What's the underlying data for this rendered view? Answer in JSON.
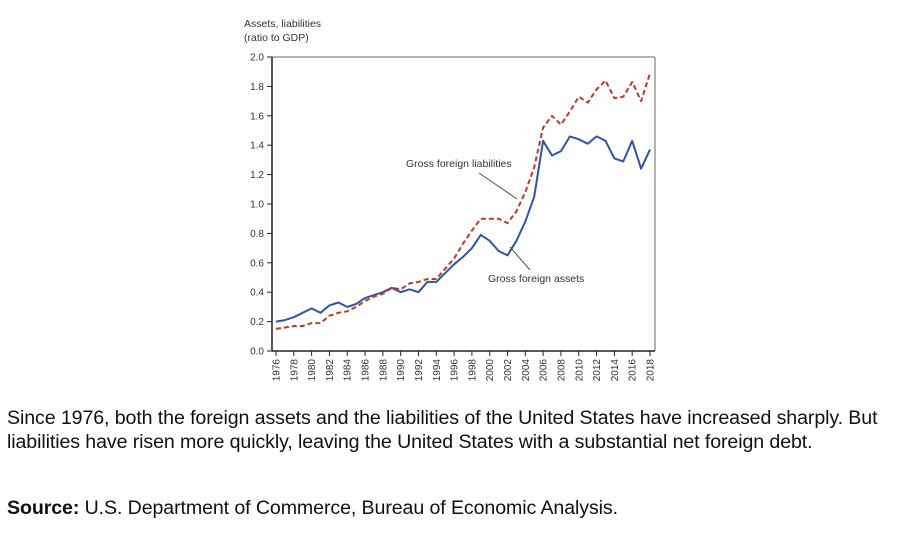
{
  "chart_data": {
    "type": "line",
    "title": "",
    "ylabel_lines": [
      "Assets, liabilities",
      "(ratio to GDP)"
    ],
    "xlabel": "",
    "ylim": [
      0.0,
      2.0
    ],
    "xlim": [
      1976,
      2018
    ],
    "yticks": [
      "0.0",
      "0.2",
      "0.4",
      "0.6",
      "0.8",
      "1.0",
      "1.2",
      "1.4",
      "1.6",
      "1.8",
      "2.0"
    ],
    "xticks": [
      "1976",
      "1978",
      "1980",
      "1982",
      "1984",
      "1986",
      "1988",
      "1990",
      "1992",
      "1994",
      "1996",
      "1998",
      "2000",
      "2002",
      "2004",
      "2006",
      "2008",
      "2010",
      "2012",
      "2014",
      "2016",
      "2018"
    ],
    "grid": false,
    "x": [
      1976,
      1977,
      1978,
      1979,
      1980,
      1981,
      1982,
      1983,
      1984,
      1985,
      1986,
      1987,
      1988,
      1989,
      1990,
      1991,
      1992,
      1993,
      1994,
      1995,
      1996,
      1997,
      1998,
      1999,
      2000,
      2001,
      2002,
      2003,
      2004,
      2005,
      2006,
      2007,
      2008,
      2009,
      2010,
      2011,
      2012,
      2013,
      2014,
      2015,
      2016,
      2017,
      2018
    ],
    "series": [
      {
        "name": "Gross foreign assets",
        "color": "#2f55a4",
        "style": "solid",
        "values": [
          0.2,
          0.21,
          0.23,
          0.26,
          0.29,
          0.26,
          0.31,
          0.33,
          0.3,
          0.32,
          0.36,
          0.38,
          0.4,
          0.43,
          0.4,
          0.42,
          0.4,
          0.47,
          0.47,
          0.53,
          0.59,
          0.64,
          0.7,
          0.79,
          0.75,
          0.68,
          0.65,
          0.75,
          0.88,
          1.05,
          1.43,
          1.33,
          1.36,
          1.46,
          1.44,
          1.41,
          1.46,
          1.43,
          1.31,
          1.29,
          1.43,
          1.24,
          1.37
        ]
      },
      {
        "name": "Gross foreign liabilities",
        "color": "#c0392b",
        "style": "dashed",
        "values": [
          0.15,
          0.16,
          0.17,
          0.17,
          0.19,
          0.19,
          0.24,
          0.26,
          0.27,
          0.3,
          0.34,
          0.37,
          0.39,
          0.43,
          0.42,
          0.46,
          0.47,
          0.49,
          0.49,
          0.56,
          0.63,
          0.73,
          0.82,
          0.9,
          0.9,
          0.9,
          0.87,
          0.95,
          1.08,
          1.25,
          1.52,
          1.6,
          1.54,
          1.63,
          1.73,
          1.69,
          1.78,
          1.84,
          1.72,
          1.73,
          1.83,
          1.7,
          1.89
        ]
      }
    ],
    "annotations": [
      {
        "text": "Gross foreign liabilities",
        "series": "Gross foreign liabilities",
        "points_to_year": 2003
      },
      {
        "text": "Gross foreign assets",
        "series": "Gross foreign assets",
        "points_to_year": 2003
      }
    ]
  },
  "caption": "Since 1976, both the foreign assets and the liabilities of the United States have increased sharply. But liabilities have risen more quickly, leaving the United States with a substantial net foreign debt.",
  "source": {
    "label": "Source:",
    "text": " U.S. Department of Commerce, Bureau of Economic Analysis."
  }
}
